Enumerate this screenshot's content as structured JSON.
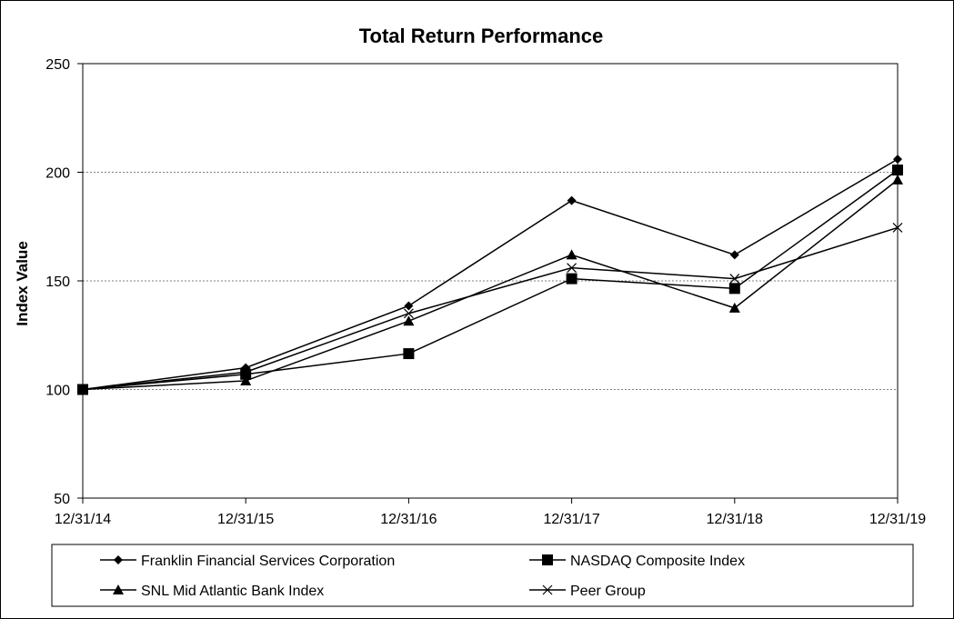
{
  "chart_data": {
    "type": "line",
    "title": "Total Return Performance",
    "xlabel": "",
    "ylabel": "Index Value",
    "categories": [
      "12/31/14",
      "12/31/15",
      "12/31/16",
      "12/31/17",
      "12/31/18",
      "12/31/19"
    ],
    "ylim": [
      50,
      250
    ],
    "yticks": [
      50,
      100,
      150,
      200,
      250
    ],
    "grid": "horizontal dashed at 100, 150, 200",
    "legend_position": "bottom",
    "series": [
      {
        "name": "Franklin Financial Services Corporation",
        "marker": "diamond",
        "values": [
          100,
          110,
          138.5,
          187,
          162,
          206
        ]
      },
      {
        "name": "NASDAQ Composite Index",
        "marker": "square",
        "values": [
          100,
          107,
          116.5,
          151,
          146.5,
          201
        ]
      },
      {
        "name": "SNL Mid Atlantic Bank Index",
        "marker": "triangle",
        "values": [
          100,
          104,
          131.5,
          162,
          137.5,
          196.5
        ]
      },
      {
        "name": "Peer Group",
        "marker": "x",
        "values": [
          100,
          108,
          135,
          156,
          151,
          174.5
        ]
      }
    ]
  }
}
